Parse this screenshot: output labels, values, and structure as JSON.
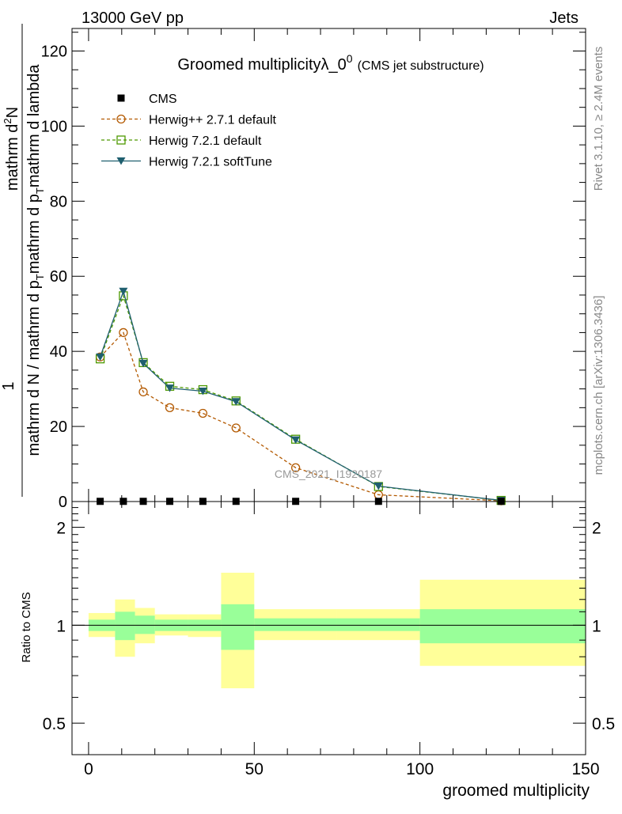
{
  "header": {
    "left": "13000 GeV pp",
    "right": "Jets"
  },
  "side_labels": {
    "rivet": "Rivet 3.1.10, ≥ 2.4M events",
    "site": "mcplots.cern.ch [arXiv:1306.3436]"
  },
  "chart_data": [
    {
      "type": "line",
      "title_main": "Groomed multiplicityλ_0",
      "title_sup": "0",
      "title_small": "(CMS jet substructure)",
      "ylabel_line1": "1",
      "ylabel_line2": "mathrm d N / mathrm d p",
      "ylabel_line2_sub": "T",
      "ylabel_line2_tail": "mathrm d p",
      "ylabel_line2_sub2": "T",
      "ylabel_line2_end": "mathrm d lambda",
      "ylabel_num": "mathrm d",
      "ylabel_num_sup": "2",
      "ylabel_num_tail": "N",
      "xlim": [
        -5,
        150
      ],
      "ylim": [
        0,
        126
      ],
      "yticks": [
        "0",
        "20",
        "40",
        "60",
        "80",
        "100",
        "120"
      ],
      "watermark": "CMS_2021_I1920187",
      "legend_position": "top-left",
      "series": [
        {
          "name": "CMS",
          "color": "#000000",
          "marker": "square-filled",
          "x": [
            3.5,
            10.5,
            16.5,
            24.5,
            34.5,
            44.5,
            62.5,
            87.5,
            124.5
          ],
          "y": [
            0.05,
            0.05,
            0.05,
            0.05,
            0.05,
            0.05,
            0.05,
            0.05,
            0.05
          ]
        },
        {
          "name": "Herwig++ 2.7.1 default",
          "color": "#b35900",
          "marker": "circle-open",
          "dash": "dashed",
          "x": [
            3.5,
            10.5,
            16.5,
            24.5,
            34.5,
            44.5,
            62.5,
            87.5,
            124.5
          ],
          "y": [
            38.5,
            45.0,
            29.2,
            25.0,
            23.5,
            19.6,
            9.0,
            1.8,
            0.2
          ]
        },
        {
          "name": "Herwig 7.2.1 default",
          "color": "#4d9900",
          "marker": "square-open",
          "dash": "dashed",
          "x": [
            3.5,
            10.5,
            16.5,
            24.5,
            34.5,
            44.5,
            62.5,
            87.5,
            124.5
          ],
          "y": [
            38.0,
            54.8,
            37.0,
            30.7,
            29.8,
            26.8,
            16.6,
            4.0,
            0.3
          ]
        },
        {
          "name": "Herwig 7.2.1 softTune",
          "color": "#1f5f6f",
          "marker": "triangle-down-filled",
          "dash": "solid",
          "x": [
            3.5,
            10.5,
            16.5,
            24.5,
            34.5,
            44.5,
            62.5,
            87.5,
            124.5
          ],
          "y": [
            38.5,
            56.0,
            36.8,
            30.2,
            29.4,
            26.6,
            16.4,
            4.1,
            0.3
          ]
        }
      ]
    },
    {
      "type": "area",
      "ylabel": "Ratio to CMS",
      "xlabel": "groomed multiplicity",
      "xlim": [
        -5,
        150
      ],
      "ylim": [
        0.4,
        2.4
      ],
      "log_y": true,
      "yticks": [
        "0.5",
        "1",
        "2"
      ],
      "xticks": [
        "0",
        "50",
        "100",
        "150"
      ],
      "reference_line": 1,
      "bands": {
        "bin_edges": [
          0,
          8,
          14,
          20,
          30,
          40,
          50,
          75,
          100,
          150
        ],
        "inner": {
          "color": "#99ff99",
          "lower": [
            0.96,
            0.9,
            0.94,
            0.96,
            0.96,
            0.84,
            0.96,
            0.96,
            0.88
          ],
          "upper": [
            1.04,
            1.1,
            1.07,
            1.04,
            1.04,
            1.16,
            1.05,
            1.05,
            1.12
          ]
        },
        "outer": {
          "color": "#ffff99",
          "lower": [
            0.92,
            0.8,
            0.88,
            0.93,
            0.92,
            0.64,
            0.9,
            0.9,
            0.75
          ],
          "upper": [
            1.09,
            1.2,
            1.13,
            1.08,
            1.08,
            1.45,
            1.12,
            1.12,
            1.38
          ]
        }
      }
    }
  ]
}
